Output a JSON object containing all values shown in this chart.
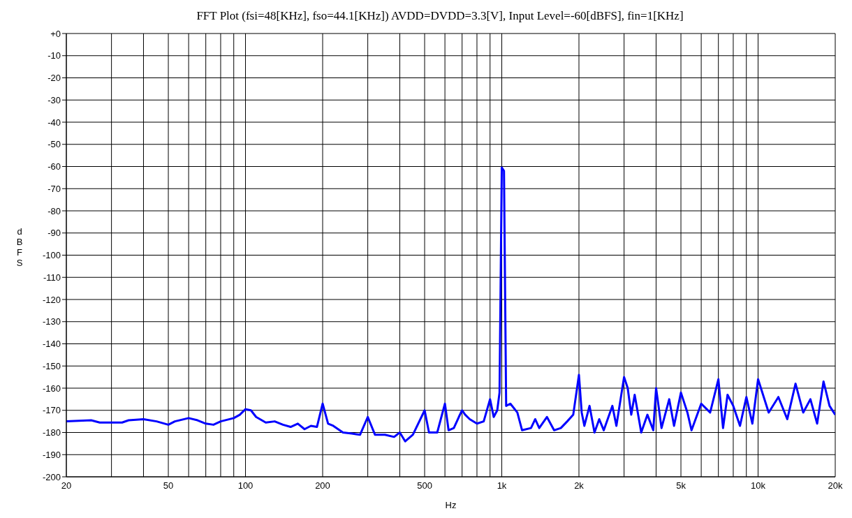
{
  "chart_data": {
    "type": "line",
    "title": "FFT Plot (fsi=48[KHz], fso=44.1[KHz]) AVDD=DVDD=3.3[V], Input Level=-60[dBFS], fin=1[KHz]",
    "xlabel": "Hz",
    "ylabel": "dBFS",
    "log": "x",
    "grid": true,
    "legend": false,
    "marker": "none",
    "line_style": "solid",
    "xlim": [
      20,
      20000
    ],
    "ylim": [
      -200,
      0
    ],
    "xticks": [
      {
        "value": 20,
        "label": "20"
      },
      {
        "value": 30,
        "label": null
      },
      {
        "value": 40,
        "label": null
      },
      {
        "value": 50,
        "label": "50"
      },
      {
        "value": 60,
        "label": null
      },
      {
        "value": 70,
        "label": null
      },
      {
        "value": 80,
        "label": null
      },
      {
        "value": 90,
        "label": null
      },
      {
        "value": 100,
        "label": "100"
      },
      {
        "value": 200,
        "label": "200"
      },
      {
        "value": 300,
        "label": null
      },
      {
        "value": 400,
        "label": null
      },
      {
        "value": 500,
        "label": "500"
      },
      {
        "value": 600,
        "label": null
      },
      {
        "value": 700,
        "label": null
      },
      {
        "value": 800,
        "label": null
      },
      {
        "value": 900,
        "label": null
      },
      {
        "value": 1000,
        "label": "1k"
      },
      {
        "value": 2000,
        "label": "2k"
      },
      {
        "value": 3000,
        "label": null
      },
      {
        "value": 4000,
        "label": null
      },
      {
        "value": 5000,
        "label": "5k"
      },
      {
        "value": 6000,
        "label": null
      },
      {
        "value": 7000,
        "label": null
      },
      {
        "value": 8000,
        "label": null
      },
      {
        "value": 9000,
        "label": null
      },
      {
        "value": 10000,
        "label": "10k"
      },
      {
        "value": 20000,
        "label": "20k"
      }
    ],
    "yticks": [
      -200,
      -190,
      -180,
      -170,
      -160,
      -150,
      -140,
      -130,
      -120,
      -110,
      -100,
      -90,
      -80,
      -70,
      -60,
      -50,
      -40,
      -30,
      -20,
      -10,
      {
        "value": 0,
        "label": "+0"
      }
    ],
    "x": [
      20,
      25,
      27,
      33,
      35,
      40,
      45,
      50,
      53,
      60,
      65,
      70,
      75,
      80,
      90,
      95,
      100,
      105,
      110,
      120,
      130,
      140,
      150,
      160,
      170,
      180,
      190,
      200,
      210,
      220,
      240,
      260,
      280,
      300,
      320,
      350,
      380,
      400,
      420,
      450,
      500,
      520,
      560,
      600,
      620,
      650,
      680,
      700,
      720,
      750,
      800,
      850,
      900,
      930,
      960,
      980,
      1000,
      1020,
      1040,
      1080,
      1150,
      1200,
      1300,
      1350,
      1400,
      1500,
      1600,
      1700,
      1800,
      1900,
      2000,
      2050,
      2100,
      2200,
      2300,
      2400,
      2500,
      2700,
      2800,
      3000,
      3100,
      3200,
      3300,
      3500,
      3700,
      3900,
      4000,
      4200,
      4500,
      4700,
      5000,
      5300,
      5500,
      6000,
      6500,
      7000,
      7300,
      7600,
      8000,
      8500,
      9000,
      9500,
      10000,
      11000,
      12000,
      13000,
      14000,
      15000,
      16000,
      17000,
      18000,
      19000,
      20000
    ],
    "series": [
      {
        "color": "#0000ff",
        "values": [
          -175,
          -174.5,
          -175.5,
          -175.5,
          -174.5,
          -174,
          -175,
          -176.5,
          -175,
          -173.5,
          -174.5,
          -176,
          -176.5,
          -175,
          -173.5,
          -172,
          -169.5,
          -170,
          -173,
          -175.5,
          -175,
          -176.5,
          -177.5,
          -176,
          -178.5,
          -177,
          -177.5,
          -167,
          -176,
          -177,
          -180,
          -180.5,
          -181,
          -173,
          -181,
          -181,
          -182,
          -180,
          -184,
          -181,
          -170,
          -180,
          -180,
          -167,
          -179,
          -178,
          -173,
          -170,
          -172,
          -174,
          -176,
          -175,
          -165,
          -173,
          -170,
          -162,
          -60.5,
          -62,
          -168,
          -167,
          -171,
          -179,
          -178,
          -174,
          -178,
          -173,
          -179,
          -178,
          -175,
          -172,
          -154,
          -171,
          -177,
          -168,
          -180,
          -174,
          -179,
          -168,
          -177,
          -155,
          -160,
          -172,
          -163,
          -180,
          -172,
          -179,
          -160,
          -178,
          -165,
          -177,
          -162,
          -171,
          -179,
          -167,
          -171,
          -156,
          -178,
          -163,
          -168,
          -177,
          -164,
          -176,
          -156,
          -171,
          -164,
          -174,
          -158,
          -171,
          -165,
          -176,
          -157,
          -168,
          -172
        ]
      }
    ]
  }
}
